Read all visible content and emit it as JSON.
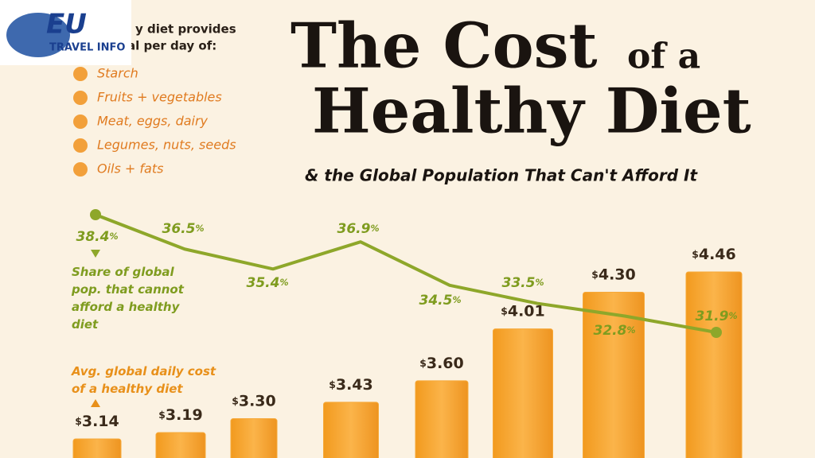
{
  "legend": {
    "intro": [
      "y diet provides",
      "al per day of:"
    ],
    "items": [
      "Starch",
      "Fruits + vegetables",
      "Meat, eggs, dairy",
      "Legumes, nuts, seeds",
      "Oils + fats"
    ]
  },
  "logo": {
    "title": "EU",
    "subtitle": "TRAVEL INFO"
  },
  "chart_data": {
    "type": "bar_line",
    "title": [
      "The Cost",
      "of a",
      "Healthy Diet"
    ],
    "subtitle": "& the Global Population That Can't Afford It",
    "series": [
      {
        "name": "Avg. global daily cost of a healthy diet",
        "type": "bar",
        "color": "#f6a93a",
        "values": [
          3.14,
          3.19,
          3.3,
          3.43,
          3.6,
          4.01,
          4.3,
          4.46
        ],
        "value_labels": [
          "$3.14",
          "$3.19",
          "$3.30",
          "$3.43",
          "$3.60",
          "$4.01",
          "$4.30",
          "$4.46"
        ]
      },
      {
        "name": "Share of global pop. that cannot afford a healthy diet",
        "type": "line",
        "color": "#8ea72a",
        "values": [
          38.4,
          36.5,
          35.4,
          36.9,
          34.5,
          33.5,
          32.8,
          31.9
        ],
        "value_labels": [
          "38.4%",
          "36.5%",
          "35.4%",
          "36.9%",
          "34.5%",
          "33.5%",
          "32.8%",
          "31.9%"
        ]
      }
    ]
  }
}
